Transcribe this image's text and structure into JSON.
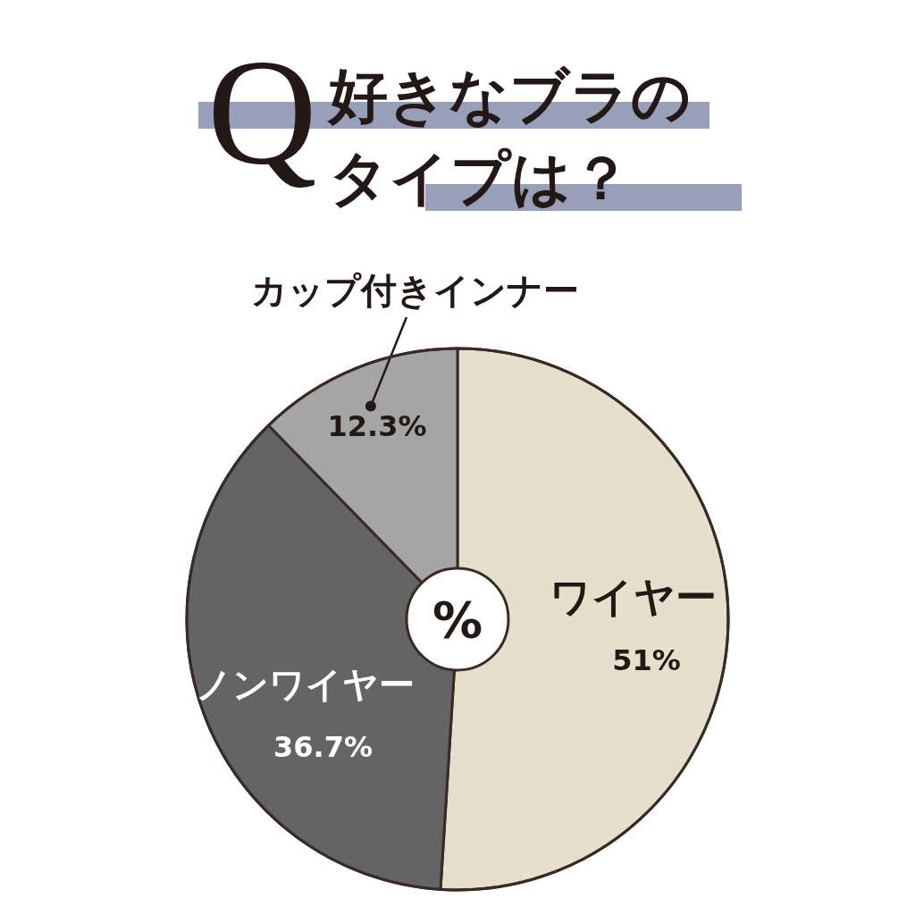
{
  "chart_data": {
    "type": "pie",
    "title": "好きなブラのタイプは？",
    "categories": [
      "ワイヤー",
      "ノンワイヤー",
      "カップ付きインナー"
    ],
    "values": [
      51,
      36.7,
      12.3
    ],
    "colors": [
      "#e6dfcc",
      "#646464",
      "#a5a5a5"
    ],
    "value_labels": [
      "51%",
      "36.7%",
      "12.3%"
    ],
    "annotations": [
      "Q",
      "%"
    ]
  }
}
